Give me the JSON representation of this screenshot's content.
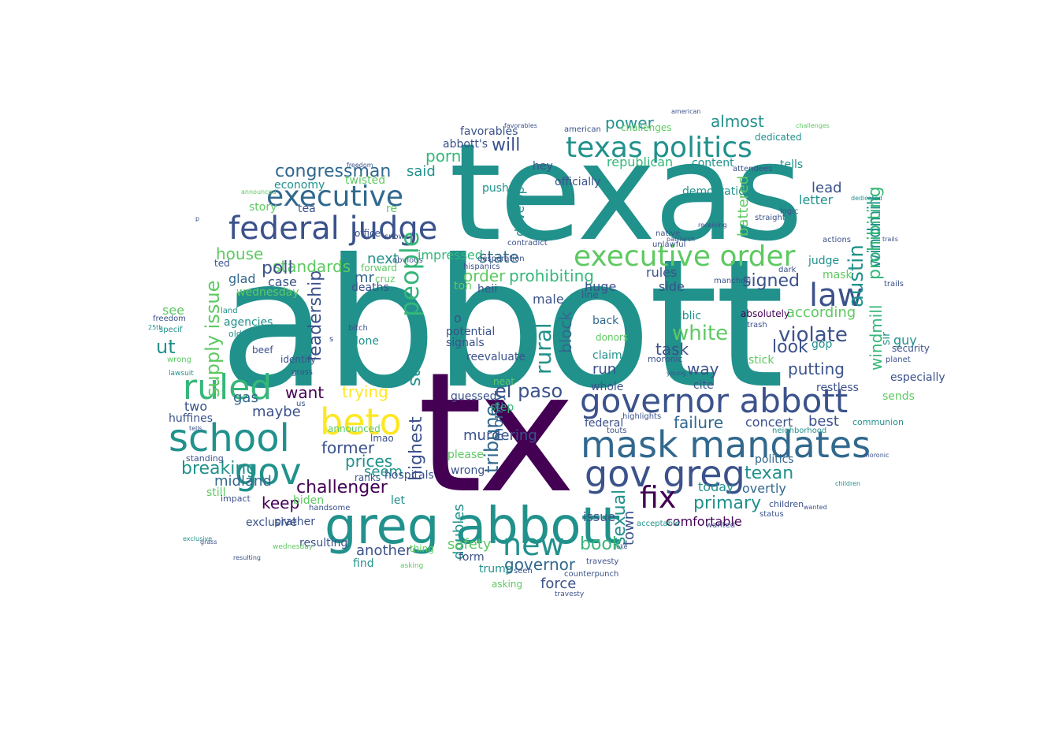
{
  "words": [
    {
      "text": "abbott",
      "color": "#21918c"
    },
    {
      "text": "texas",
      "color": "#21918c"
    },
    {
      "text": "tx",
      "color": "#440154"
    },
    {
      "text": "greg abbott",
      "color": "#21918c"
    },
    {
      "text": "mask mandates",
      "color": "#31688e"
    },
    {
      "text": "governor abbott",
      "color": "#3b528b"
    },
    {
      "text": "executive order",
      "color": "#5ec962"
    },
    {
      "text": "texas politics",
      "color": "#21918c"
    },
    {
      "text": "executive",
      "color": "#31688e"
    },
    {
      "text": "federal judge",
      "color": "#3b528b"
    },
    {
      "text": "school",
      "color": "#21918c"
    },
    {
      "text": "beto",
      "color": "#fde725"
    },
    {
      "text": "gov greg",
      "color": "#3b528b"
    },
    {
      "text": "gov",
      "color": "#21918c"
    },
    {
      "text": "law",
      "color": "#3b528b"
    },
    {
      "text": "new",
      "color": "#21918c"
    },
    {
      "text": "ruled",
      "color": "#35b779"
    },
    {
      "text": "fix",
      "color": "#440154"
    },
    {
      "text": "congressman",
      "color": "#31688e"
    },
    {
      "text": "people",
      "color": "#35b779"
    },
    {
      "text": "prohibiting",
      "color": "#35b779"
    },
    {
      "text": "challenger",
      "color": "#440154"
    },
    {
      "text": "breaking",
      "color": "#21918c"
    },
    {
      "text": "violate",
      "color": "#3b528b"
    },
    {
      "text": "white",
      "color": "#5ec962"
    },
    {
      "text": "leadership",
      "color": "#3b528b"
    },
    {
      "text": "putting",
      "color": "#3b528b"
    },
    {
      "text": "primary",
      "color": "#21918c"
    },
    {
      "text": "book",
      "color": "#35b779"
    },
    {
      "text": "governor",
      "color": "#31688e"
    },
    {
      "text": "el paso",
      "color": "#3b528b"
    },
    {
      "text": "texan",
      "color": "#21918c"
    },
    {
      "text": "state",
      "color": "#31688e"
    },
    {
      "text": "standards",
      "color": "#5ec962"
    },
    {
      "text": "almost",
      "color": "#21918c"
    },
    {
      "text": "power",
      "color": "#21918c"
    },
    {
      "text": "will",
      "color": "#3b528b"
    },
    {
      "text": "porn",
      "color": "#35b779"
    },
    {
      "text": "poll",
      "color": "#3b528b"
    },
    {
      "text": "austin",
      "color": "#21918c"
    },
    {
      "text": "signed",
      "color": "#3b528b"
    },
    {
      "text": "look",
      "color": "#3b528b"
    },
    {
      "text": "trying",
      "color": "#fde725"
    },
    {
      "text": "former",
      "color": "#3b528b"
    },
    {
      "text": "prices",
      "color": "#21918c"
    },
    {
      "text": "keep",
      "color": "#440154"
    },
    {
      "text": "midland",
      "color": "#31688e"
    },
    {
      "text": "another",
      "color": "#3b528b"
    },
    {
      "text": "comfortable",
      "color": "#440154"
    },
    {
      "text": "supply issue",
      "color": "#5ec962"
    },
    {
      "text": "house",
      "color": "#5ec962"
    },
    {
      "text": "want",
      "color": "#440154"
    },
    {
      "text": "gas",
      "color": "#31688e"
    },
    {
      "text": "maybe",
      "color": "#3b528b"
    },
    {
      "text": "huffines",
      "color": "#3b528b"
    },
    {
      "text": "two",
      "color": "#3b528b"
    },
    {
      "text": "ut",
      "color": "#21918c"
    },
    {
      "text": "see",
      "color": "#5ec962"
    },
    {
      "text": "glad",
      "color": "#31688e"
    },
    {
      "text": "agencies",
      "color": "#21918c"
    },
    {
      "text": "case",
      "color": "#3b528b"
    },
    {
      "text": "done",
      "color": "#21918c"
    },
    {
      "text": "mr",
      "color": "#31688e"
    },
    {
      "text": "order",
      "color": "#5ec962"
    },
    {
      "text": "rural",
      "color": "#21918c"
    },
    {
      "text": "tribune",
      "color": "#31688e"
    },
    {
      "text": "seem",
      "color": "#21918c"
    },
    {
      "text": "force",
      "color": "#3b528b"
    },
    {
      "text": "safety",
      "color": "#5ec962"
    },
    {
      "text": "run",
      "color": "#3b528b"
    },
    {
      "text": "task",
      "color": "#3b528b"
    },
    {
      "text": "way",
      "color": "#3b528b"
    },
    {
      "text": "failure",
      "color": "#31688e"
    },
    {
      "text": "best",
      "color": "#3b528b"
    },
    {
      "text": "concert",
      "color": "#3b528b"
    },
    {
      "text": "politics",
      "color": "#31688e"
    },
    {
      "text": "overtly",
      "color": "#31688e"
    },
    {
      "text": "lead",
      "color": "#3b528b"
    },
    {
      "text": "found",
      "color": "#5ec962"
    },
    {
      "text": "according",
      "color": "#5ec962"
    },
    {
      "text": "battered",
      "color": "#21918c"
    },
    {
      "text": "gop",
      "color": "#21918c"
    },
    {
      "text": "guy",
      "color": "#3b528b"
    },
    {
      "text": "especially",
      "color": "#21918c"
    },
    {
      "text": "public",
      "color": "#3b528b"
    },
    {
      "text": "rules",
      "color": "#3b528b"
    },
    {
      "text": "side",
      "color": "#3b528b"
    },
    {
      "text": "huge",
      "color": "#3b528b"
    },
    {
      "text": "male",
      "color": "#35b779"
    },
    {
      "text": "impressed",
      "color": "#21918c"
    },
    {
      "text": "democratic",
      "color": "#35b779"
    },
    {
      "text": "republican",
      "color": "#21918c"
    },
    {
      "text": "content",
      "color": "#21918c"
    },
    {
      "text": "tells",
      "color": "#21918c"
    },
    {
      "text": "letter",
      "color": "#21918c"
    },
    {
      "text": "judge",
      "color": "#5ec962"
    },
    {
      "text": "mask",
      "color": "#21918c"
    },
    {
      "text": "windmill",
      "color": "#21918c"
    },
    {
      "text": "sir",
      "color": "#3b528b"
    },
    {
      "text": "restless",
      "color": "#5ec962"
    },
    {
      "text": "sends",
      "color": "#3b528b"
    },
    {
      "text": "security",
      "color": "#3b528b"
    },
    {
      "text": "planet",
      "color": "#5ec962"
    },
    {
      "text": "stick",
      "color": "#3b528b"
    },
    {
      "text": "cite",
      "color": "#21918c"
    },
    {
      "text": "today",
      "color": "#21918c"
    },
    {
      "text": "sexual",
      "color": "#3b528b"
    },
    {
      "text": "town",
      "color": "#3b528b"
    },
    {
      "text": "issue",
      "color": "#3b528b"
    },
    {
      "text": "federal",
      "color": "#3b528b"
    },
    {
      "text": "whole",
      "color": "#21918c"
    },
    {
      "text": "claims",
      "color": "#31688e"
    },
    {
      "text": "back",
      "color": "#31688e"
    },
    {
      "text": "lawsuit",
      "color": "#31688e"
    },
    {
      "text": "block",
      "color": "#3b528b"
    },
    {
      "text": "money",
      "color": "#3b528b"
    },
    {
      "text": "signals",
      "color": "#3b528b"
    },
    {
      "text": "develop",
      "color": "#5ec962"
    },
    {
      "text": "potential",
      "color": "#21918c"
    },
    {
      "text": "heii",
      "color": "#3b528b"
    },
    {
      "text": "ton",
      "color": "#3b528b"
    },
    {
      "text": "hey",
      "color": "#21918c"
    },
    {
      "text": "officially",
      "color": "#5ec962"
    },
    {
      "text": "push",
      "color": "#21918c"
    },
    {
      "text": "twisted",
      "color": "#21918c"
    },
    {
      "text": "said",
      "color": "#5ec962"
    },
    {
      "text": "economy",
      "color": "#3b528b"
    },
    {
      "text": "story",
      "color": "#5ec962"
    },
    {
      "text": "tea",
      "color": "#3b528b"
    },
    {
      "text": "re",
      "color": "#21918c"
    },
    {
      "text": "office",
      "color": "#3b528b"
    },
    {
      "text": "next",
      "color": "#5ec962"
    },
    {
      "text": "deaths",
      "color": "#21918c"
    },
    {
      "text": "cruz",
      "color": "#3b528b"
    },
    {
      "text": "st",
      "color": "#3b528b"
    },
    {
      "text": "highest",
      "color": "#3b528b"
    },
    {
      "text": "murdering",
      "color": "#35b779"
    },
    {
      "text": "guessed",
      "color": "#21918c"
    },
    {
      "text": "step",
      "color": "#5ec962"
    },
    {
      "text": "along",
      "color": "#3b528b"
    },
    {
      "text": "please",
      "color": "#3b528b"
    },
    {
      "text": "wrong",
      "color": "#3b528b"
    },
    {
      "text": "hospitals",
      "color": "#5ec962"
    },
    {
      "text": "ranks",
      "color": "#21918c"
    },
    {
      "text": "biden",
      "color": "#3b528b"
    },
    {
      "text": "let",
      "color": "#3b528b"
    },
    {
      "text": "prather",
      "color": "#5ec962"
    },
    {
      "text": "resulting",
      "color": "#3b528b"
    },
    {
      "text": "still",
      "color": "#21918c"
    },
    {
      "text": "impact",
      "color": "#5ec962"
    },
    {
      "text": "doubles",
      "color": "#21918c"
    },
    {
      "text": "thing",
      "color": "#3b528b"
    },
    {
      "text": "find",
      "color": "#21918c"
    },
    {
      "text": "form",
      "color": "#5ec962"
    },
    {
      "text": "trump",
      "color": "#5ec962"
    },
    {
      "text": "asking",
      "color": "#3b528b"
    },
    {
      "text": "donors",
      "color": "#3b528b"
    },
    {
      "text": "reevaluate",
      "color": "#5ec962"
    },
    {
      "text": "favorables",
      "color": "#21918c"
    },
    {
      "text": "abbott's",
      "color": "#3b528b"
    },
    {
      "text": "wednesday",
      "color": "#21918c"
    },
    {
      "text": "land",
      "color": "#3b528b"
    },
    {
      "text": "ted",
      "color": "#3b528b"
    },
    {
      "text": "oldest",
      "color": "#3b528b"
    },
    {
      "text": "identify",
      "color": "#3b528b"
    },
    {
      "text": "grass",
      "color": "#21918c"
    },
    {
      "text": "beef",
      "color": "#21918c"
    },
    {
      "text": "freedom",
      "color": "#3b528b"
    },
    {
      "text": "specif",
      "color": "#3b528b"
    },
    {
      "text": "25th",
      "color": "#3b528b"
    },
    {
      "text": "standing",
      "color": "#3b528b"
    },
    {
      "text": "exclusive",
      "color": "#3b528b"
    },
    {
      "text": "handsome",
      "color": "#5ec962"
    },
    {
      "text": "bitch",
      "color": "#5ec962"
    },
    {
      "text": "lmao",
      "color": "#3b528b"
    },
    {
      "text": "neat",
      "color": "#3b528b"
    },
    {
      "text": "announced",
      "color": "#5ec962"
    },
    {
      "text": "snow",
      "color": "#3b528b"
    },
    {
      "text": "obvious",
      "color": "#3b528b"
    },
    {
      "text": "forward",
      "color": "#3b528b"
    },
    {
      "text": "desperation",
      "color": "#3b528b"
    },
    {
      "text": "hispanics",
      "color": "#440154"
    },
    {
      "text": "line",
      "color": "#3b528b"
    },
    {
      "text": "moronic",
      "color": "#3b528b"
    },
    {
      "text": "absolutely",
      "color": "#3b528b"
    },
    {
      "text": "trash",
      "color": "#3b528b"
    },
    {
      "text": "young",
      "color": "#3b528b"
    },
    {
      "text": "wanted",
      "color": "#21918c"
    },
    {
      "text": "children",
      "color": "#21918c"
    },
    {
      "text": "status",
      "color": "#3b528b"
    },
    {
      "text": "communion",
      "color": "#3b528b"
    },
    {
      "text": "neighborhood",
      "color": "#3b528b"
    },
    {
      "text": "highlights",
      "color": "#3b528b"
    },
    {
      "text": "touts",
      "color": "#21918c"
    },
    {
      "text": "seen",
      "color": "#3b528b"
    },
    {
      "text": "counterpunch",
      "color": "#3b528b"
    },
    {
      "text": "acceptable",
      "color": "#3b528b"
    },
    {
      "text": "travesty",
      "color": "#21918c"
    },
    {
      "text": "joke",
      "color": "#3b528b"
    },
    {
      "text": "trails",
      "color": "#5ec962"
    },
    {
      "text": "dedicated",
      "color": "#3b528b"
    },
    {
      "text": "actions",
      "color": "#3b528b"
    },
    {
      "text": "challenges",
      "color": "#3b528b"
    },
    {
      "text": "attendees",
      "color": "#3b528b"
    },
    {
      "text": "logic",
      "color": "#3b528b"
    },
    {
      "text": "straight",
      "color": "#3b528b"
    },
    {
      "text": "dark",
      "color": "#3b528b"
    },
    {
      "text": "native",
      "color": "#3b528b"
    },
    {
      "text": "unlawful",
      "color": "#3b528b"
    },
    {
      "text": "patriarch",
      "color": "#3b528b"
    },
    {
      "text": "receiving",
      "color": "#3b528b"
    },
    {
      "text": "american",
      "color": "#3b528b"
    },
    {
      "text": "manchuri",
      "color": "#3b528b"
    },
    {
      "text": "contradict",
      "color": "#3b528b"
    },
    {
      "text": "us",
      "color": "#3b528b"
    },
    {
      "text": "p",
      "color": "#3b528b"
    },
    {
      "text": "s",
      "color": "#21918c"
    },
    {
      "text": "o",
      "color": "#3b528b"
    }
  ]
}
